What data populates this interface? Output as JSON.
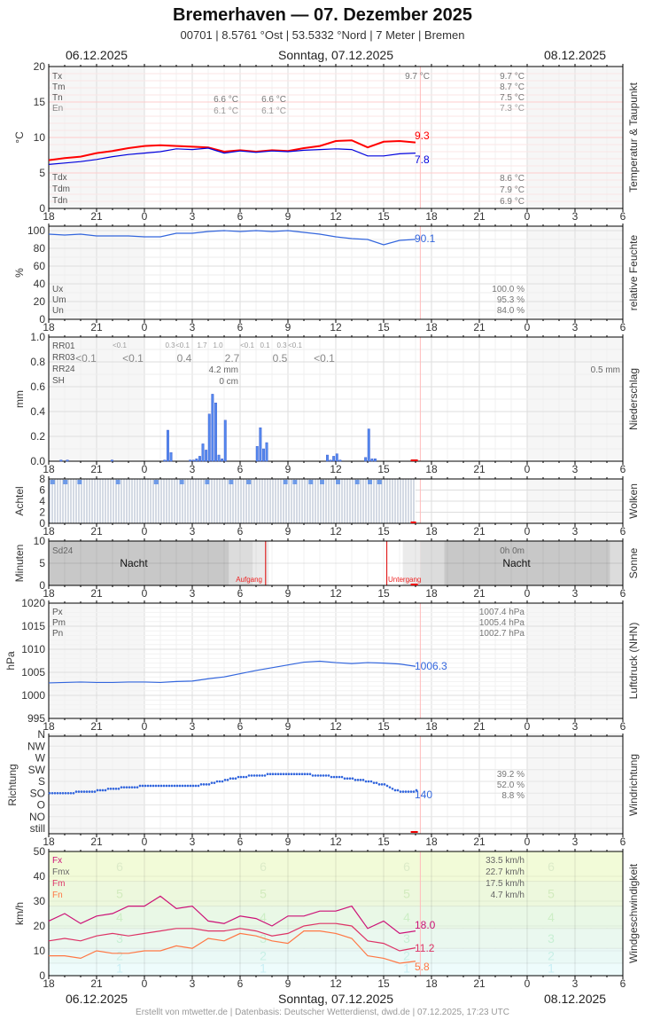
{
  "header": {
    "title": "Bremerhaven  —  07. Dezember 2025",
    "subtitle": "00701  |  8.5761 °Ost  |  53.5332 °Nord  |  7 Meter  |  Bremen",
    "date_left": "06.12.2025",
    "date_center": "Sonntag, 07.12.2025",
    "date_right": "08.12.2025"
  },
  "footer": {
    "date_left": "06.12.2025",
    "date_center": "Sonntag, 07.12.2025",
    "date_right": "08.12.2025",
    "credit": "Erstellt von mtwetter.de | Datenbasis: Deutscher Wetterdienst, dwd.de | 07.12.2025, 17:23 UTC"
  },
  "x_ticks": [
    "18",
    "21",
    "0",
    "3",
    "6",
    "9",
    "12",
    "15",
    "18",
    "21",
    "0",
    "3",
    "6"
  ],
  "chart_data": [
    {
      "type": "line",
      "title": "Temperatur & Taupunkt",
      "ylabel": "°C",
      "ylim": [
        0,
        20
      ],
      "yticks": [
        "0",
        "5",
        "10",
        "15",
        "20"
      ],
      "legend_top": [
        "Tx",
        "Tm",
        "Tn",
        "En"
      ],
      "legend_bottom": [
        "Tdx",
        "Tdm",
        "Tdn"
      ],
      "annotations_prev_day": {
        "Tn_1": "6.6 °C",
        "Tn_2": "6.6 °C",
        "En_1": "6.1 °C",
        "En_2": "6.1 °C"
      },
      "annotation_tx_today": "9.7 °C",
      "summary": {
        "Tx": "9.7 °C",
        "Tm": "8.7 °C",
        "Tn": "7.5 °C",
        "En": "7.3 °C",
        "Tdx": "8.6 °C",
        "Tdm": "7.9 °C",
        "Tdn": "6.9 °C"
      },
      "current": {
        "temperature": "9.3",
        "dewpoint": "7.8"
      },
      "x": [
        18,
        19,
        20,
        21,
        22,
        23,
        0,
        1,
        2,
        3,
        4,
        5,
        6,
        7,
        8,
        9,
        10,
        11,
        12,
        13,
        14,
        15,
        16,
        17
      ],
      "series": [
        {
          "name": "Temperatur",
          "color": "#ff0000",
          "values": [
            6.8,
            7.1,
            7.3,
            7.8,
            8.1,
            8.5,
            8.8,
            8.9,
            8.8,
            8.7,
            8.6,
            8.0,
            8.2,
            8.0,
            8.2,
            8.1,
            8.5,
            8.8,
            9.5,
            9.6,
            8.6,
            9.4,
            9.5,
            9.3
          ]
        },
        {
          "name": "Taupunkt",
          "color": "#0000dd",
          "values": [
            6.2,
            6.4,
            6.6,
            6.9,
            7.3,
            7.6,
            7.8,
            8.0,
            8.4,
            8.3,
            8.5,
            7.8,
            8.1,
            7.9,
            8.1,
            8.0,
            8.2,
            8.3,
            8.4,
            8.3,
            7.4,
            7.4,
            7.7,
            7.8
          ]
        }
      ]
    },
    {
      "type": "line",
      "title": "relative Feuchte",
      "ylabel": "%",
      "ylim": [
        0,
        105
      ],
      "yticks": [
        "0",
        "20",
        "40",
        "60",
        "80",
        "100"
      ],
      "legend": [
        "Ux",
        "Um",
        "Un"
      ],
      "summary": {
        "Ux": "100.0 %",
        "Um": "95.3 %",
        "Un": "84.0 %"
      },
      "current": "90.1",
      "x": [
        18,
        19,
        20,
        21,
        22,
        23,
        0,
        1,
        2,
        3,
        4,
        5,
        6,
        7,
        8,
        9,
        10,
        11,
        12,
        13,
        14,
        15,
        16,
        17
      ],
      "values": [
        96,
        95,
        96,
        94,
        94,
        94,
        93,
        93,
        97,
        97,
        99,
        100,
        99,
        100,
        99,
        100,
        98,
        96,
        93,
        91,
        90,
        84,
        89,
        90.1
      ]
    },
    {
      "type": "bar",
      "title": "Niederschlag",
      "ylabel": "mm",
      "ylim": [
        0,
        1.0
      ],
      "yticks": [
        "0.0",
        "0.2",
        "0.4",
        "0.6",
        "0.8",
        "1.0"
      ],
      "legend": [
        "RR01",
        "RR03",
        "RR24",
        "SH"
      ],
      "rr01_labels": [
        "<0.1",
        "0.3",
        "<0.1",
        "1.7",
        "1.0",
        "<0.1",
        "0.1",
        "0.3",
        "<0.1"
      ],
      "rr03_labels": [
        "<0.1",
        "<0.1",
        "0.4",
        "2.7",
        "0.5",
        "<0.1"
      ],
      "rr24": "4.2 mm",
      "sh": "0 cm",
      "rr24_next": "0.5 mm",
      "bars_hour_offset": [
        0.7,
        1.1,
        3.9,
        7.2,
        7.4,
        7.6,
        8.8,
        9.0,
        9.2,
        9.4,
        9.6,
        9.8,
        10.0,
        10.2,
        10.4,
        10.6,
        10.8,
        11.0,
        13.0,
        13.2,
        13.4,
        13.6,
        13.8,
        14.0,
        14.2,
        14.4,
        14.6,
        14.8,
        15.0,
        15.2,
        15.4,
        15.6,
        15.8,
        16.0,
        16.2,
        16.4,
        16.6,
        16.8,
        17.0,
        17.2,
        17.4,
        17.6,
        17.8,
        18.0,
        18.2,
        18.4,
        18.6,
        18.8,
        19.0,
        19.2,
        19.4,
        19.6,
        19.8,
        20.0,
        20.2,
        20.4,
        20.6,
        20.8
      ],
      "bars_mm": [
        0.01,
        0.01,
        0.01,
        0.01,
        0.25,
        0.07,
        0.01,
        0.01,
        0.02,
        0.04,
        0.14,
        0.09,
        0.38,
        0.54,
        0.47,
        0.05,
        0.02,
        0.33,
        0.12,
        0.27,
        0.1,
        0.15,
        0,
        0,
        0,
        0,
        0,
        0,
        0,
        0,
        0,
        0,
        0,
        0,
        0,
        0,
        0,
        0,
        0,
        0,
        0.05,
        0.01,
        0.04,
        0.06,
        0.01,
        0,
        0,
        0,
        0,
        0,
        0,
        0,
        0.03,
        0.26,
        0.02,
        0.02,
        0,
        0
      ]
    },
    {
      "type": "bar",
      "title": "Wolken",
      "ylabel": "Achtel",
      "ylim": [
        0,
        8
      ],
      "yticks": [
        "0",
        "2",
        "4",
        "6",
        "8"
      ],
      "note": "overcast 8/8 throughout observed period"
    },
    {
      "type": "area",
      "title": "Sonne",
      "ylabel": "Minuten",
      "ylim": [
        0,
        10
      ],
      "yticks": [
        "0",
        "5",
        "10"
      ],
      "legend": [
        "Sd24"
      ],
      "sd24": "0h 0m",
      "labels": {
        "night": "Nacht",
        "sunrise": "Aufgang",
        "sunset": "Untergang"
      }
    },
    {
      "type": "line",
      "title": "Luftdruck (NHN)",
      "ylabel": "hPa",
      "ylim": [
        995,
        1020
      ],
      "yticks": [
        "995",
        "1000",
        "1005",
        "1010",
        "1015",
        "1020"
      ],
      "legend": [
        "Px",
        "Pm",
        "Pn"
      ],
      "summary": {
        "Px": "1007.4 hPa",
        "Pm": "1005.4 hPa",
        "Pn": "1002.7 hPa"
      },
      "current": "1006.3",
      "x": [
        18,
        19,
        20,
        21,
        22,
        23,
        0,
        1,
        2,
        3,
        4,
        5,
        6,
        7,
        8,
        9,
        10,
        11,
        12,
        13,
        14,
        15,
        16,
        17
      ],
      "values": [
        1002.7,
        1002.8,
        1002.9,
        1002.8,
        1002.8,
        1002.9,
        1002.9,
        1002.8,
        1003.0,
        1003.1,
        1003.6,
        1004.0,
        1004.7,
        1005.4,
        1006.0,
        1006.6,
        1007.2,
        1007.4,
        1007.1,
        1006.9,
        1007.1,
        1007.0,
        1006.8,
        1006.3
      ]
    },
    {
      "type": "scatter",
      "title": "Windrichtung",
      "ylabel": "Richtung",
      "yticks": [
        "still",
        "NO",
        "O",
        "SO",
        "S",
        "SW",
        "W",
        "NW",
        "N"
      ],
      "summary": {
        "SW": "39.2 %",
        "S": "52.0 %",
        "SO": "8.8 %"
      },
      "current": "140"
    },
    {
      "type": "line",
      "title": "Windgeschwindigkeit",
      "ylabel": "km/h",
      "ylim": [
        0,
        50
      ],
      "yticks": [
        "0",
        "10",
        "20",
        "30",
        "40",
        "50"
      ],
      "legend": [
        "Fx",
        "Fmx",
        "Fm",
        "Fn"
      ],
      "summary": {
        "Fx": "33.5 km/h",
        "Fmx": "22.7 km/h",
        "Fm": "17.5 km/h",
        "Fn": "4.7 km/h"
      },
      "beaufort_labels": [
        "1",
        "2",
        "3",
        "4",
        "5",
        "6"
      ],
      "current": {
        "Fx": "18.0",
        "Fm": "11.2",
        "Fn": "5.8"
      },
      "x": [
        18,
        19,
        20,
        21,
        22,
        23,
        0,
        1,
        2,
        3,
        4,
        5,
        6,
        7,
        8,
        9,
        10,
        11,
        12,
        13,
        14,
        15,
        16,
        17
      ],
      "series": [
        {
          "name": "Fx",
          "color": "#cc1177",
          "values": [
            22,
            25,
            21,
            24,
            25,
            28,
            28,
            32,
            27,
            28,
            22,
            21,
            24,
            23,
            20,
            24,
            24,
            26,
            26,
            28,
            19,
            22,
            17,
            18
          ]
        },
        {
          "name": "Fm",
          "color": "#dd3366",
          "values": [
            14,
            15,
            14,
            16,
            17,
            16,
            17,
            18,
            19,
            19,
            18,
            18,
            19,
            18,
            16,
            17,
            20,
            21,
            21,
            20,
            14,
            13,
            10,
            11.2
          ]
        },
        {
          "name": "Fn",
          "color": "#ff7744",
          "values": [
            8,
            8,
            7,
            10,
            9,
            9,
            10,
            10,
            12,
            11,
            15,
            14,
            17,
            16,
            14,
            13,
            18,
            18,
            17,
            15,
            8,
            7,
            5,
            5.8
          ]
        }
      ]
    }
  ],
  "colors": {
    "temp": "#ff0000",
    "dew": "#0000dd",
    "humidity": "#3366dd",
    "precip": "#4477ee",
    "pressure": "#3366dd",
    "winddir": "#3366dd",
    "now_line": "#ffaaaa",
    "night_bg": "#f6f6f6"
  }
}
